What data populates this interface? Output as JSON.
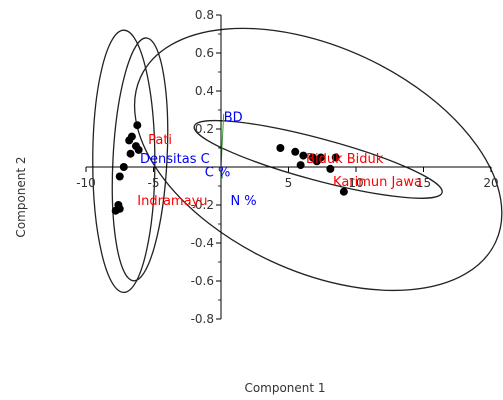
{
  "chart_data": {
    "type": "scatter",
    "xlabel": "Component 1",
    "ylabel": "Component 2",
    "xlim": [
      -10,
      20
    ],
    "ylim": [
      -0.8,
      0.8
    ],
    "x_ticks": [
      -10,
      -5,
      5,
      10,
      15,
      20
    ],
    "y_ticks": [
      0.8,
      0.6,
      0.4,
      0.2,
      -0.2,
      -0.4,
      -0.6,
      -0.8
    ],
    "grid": false,
    "series": [
      {
        "color": "#000000",
        "points": [
          [
            -6.2,
            0.22
          ],
          [
            -6.6,
            0.16
          ],
          [
            -6.8,
            0.14
          ],
          [
            -6.3,
            0.11
          ],
          [
            -6.1,
            0.09
          ],
          [
            -6.7,
            0.07
          ],
          [
            -7.2,
            0.0
          ],
          [
            -7.5,
            -0.05
          ],
          [
            -7.6,
            -0.2
          ],
          [
            -7.8,
            -0.23
          ],
          [
            -7.5,
            -0.22
          ],
          [
            4.4,
            0.1
          ],
          [
            5.5,
            0.08
          ],
          [
            6.1,
            0.06
          ],
          [
            6.8,
            0.05
          ],
          [
            7.4,
            0.05
          ],
          [
            8.5,
            0.05
          ],
          [
            7.1,
            0.03
          ],
          [
            5.9,
            0.01
          ],
          [
            8.1,
            -0.01
          ],
          [
            9.1,
            -0.13
          ]
        ]
      }
    ],
    "labels": [
      {
        "text": "Pati",
        "x": -5.4,
        "y": 0.12,
        "color": "#ff0000"
      },
      {
        "text": "Densitas C",
        "x": -6.0,
        "y": 0.02,
        "color": "#0000ff"
      },
      {
        "text": "C %",
        "x": -1.2,
        "y": -0.05,
        "color": "#0000ff"
      },
      {
        "text": "Indramayu",
        "x": -6.2,
        "y": -0.2,
        "color": "#ff0000"
      },
      {
        "text": "N %",
        "x": 0.7,
        "y": -0.2,
        "color": "#0000ff"
      },
      {
        "text": "BD",
        "x": 0.2,
        "y": 0.24,
        "color": "#0000ff"
      },
      {
        "text": "Biduk Biduk",
        "x": 6.3,
        "y": 0.02,
        "color": "#ff0000"
      },
      {
        "text": "Karimun Jawa",
        "x": 8.3,
        "y": -0.1,
        "color": "#ff0000"
      }
    ],
    "loadings": [
      {
        "x": 0.2,
        "y": 0.28
      },
      {
        "x": 0.1,
        "y": -0.06
      }
    ],
    "ellipses": [
      {
        "cx": -7.2,
        "cy": 0.03,
        "rx": 2.3,
        "ry": 0.69
      },
      {
        "cx": -6.0,
        "cy": 0.04,
        "rx": 2.0,
        "ry": 0.64
      },
      {
        "cx": 7.2,
        "cy": 0.04,
        "rx": 14.5,
        "ry": 0.59
      },
      {
        "cx": 7.2,
        "cy": 0.04,
        "rx": 9.5,
        "ry": 0.11
      }
    ]
  }
}
